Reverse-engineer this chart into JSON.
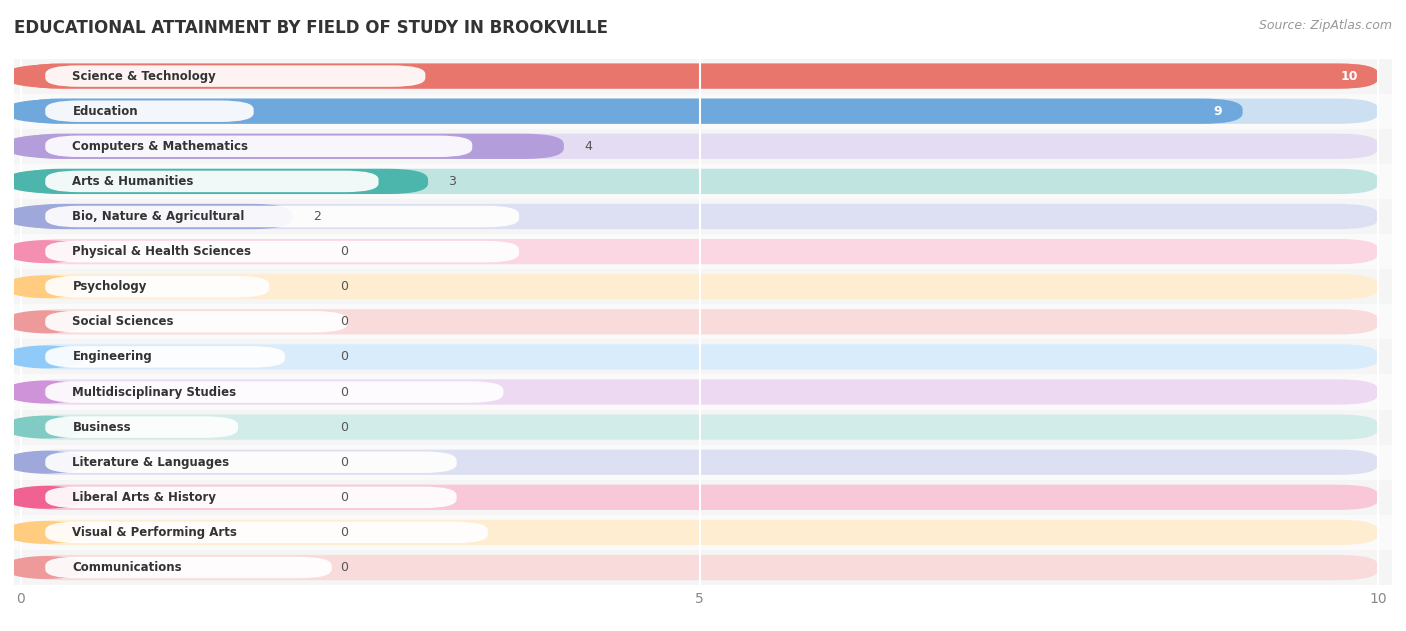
{
  "title": "EDUCATIONAL ATTAINMENT BY FIELD OF STUDY IN BROOKVILLE",
  "source": "Source: ZipAtlas.com",
  "categories": [
    "Science & Technology",
    "Education",
    "Computers & Mathematics",
    "Arts & Humanities",
    "Bio, Nature & Agricultural",
    "Physical & Health Sciences",
    "Psychology",
    "Social Sciences",
    "Engineering",
    "Multidisciplinary Studies",
    "Business",
    "Literature & Languages",
    "Liberal Arts & History",
    "Visual & Performing Arts",
    "Communications"
  ],
  "values": [
    10,
    9,
    4,
    3,
    2,
    0,
    0,
    0,
    0,
    0,
    0,
    0,
    0,
    0,
    0
  ],
  "bar_colors": [
    "#E8766D",
    "#6FA8DC",
    "#B39DDB",
    "#4DB6AC",
    "#9FA8DA",
    "#F48FB1",
    "#FFCC80",
    "#EF9A9A",
    "#90CAF9",
    "#CE93D8",
    "#80CBC4",
    "#9FA8DA",
    "#F06292",
    "#FFCC80",
    "#EF9A9A"
  ],
  "xlim_max": 10,
  "xticks": [
    0,
    5,
    10
  ],
  "bg_color": "#ffffff",
  "row_colors": [
    "#f5f5f5",
    "#fafafa"
  ],
  "title_fontsize": 12,
  "source_fontsize": 9
}
